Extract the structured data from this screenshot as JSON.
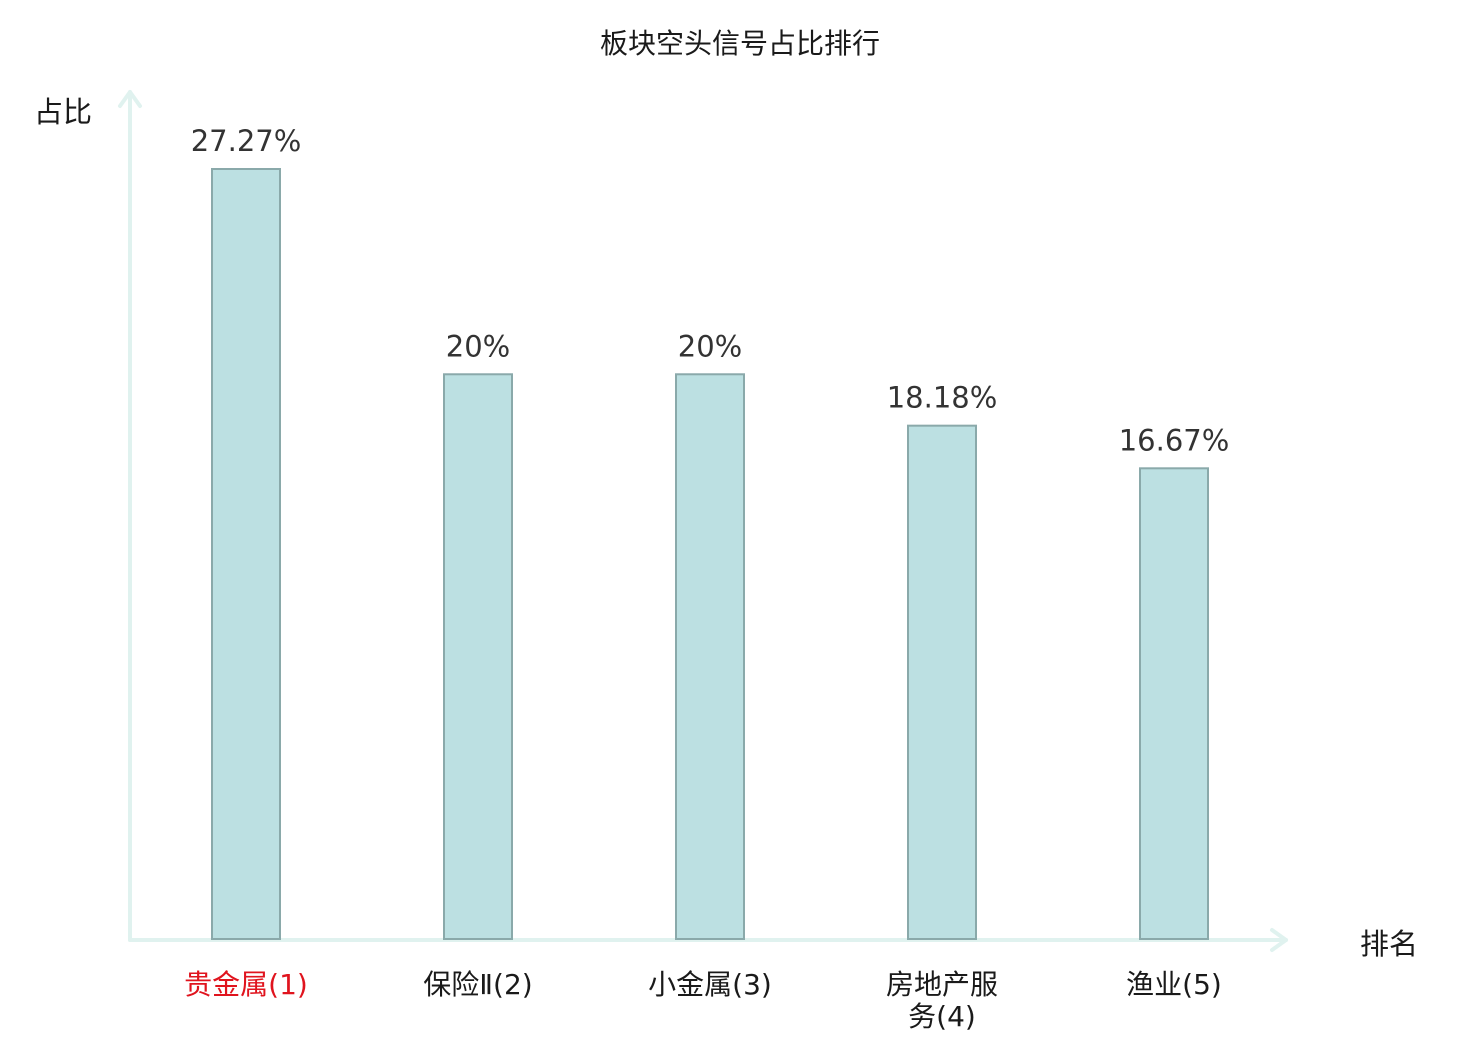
{
  "chart_data": {
    "type": "bar",
    "title": "板块空头信号占比排行",
    "xlabel": "排名",
    "ylabel": "占比",
    "categories": [
      [
        "贵金属(1)"
      ],
      [
        "保险Ⅱ(2)"
      ],
      [
        "小金属(3)"
      ],
      [
        "房地产服",
        "务(4)"
      ],
      [
        "渔业(5)"
      ]
    ],
    "values": [
      27.27,
      20,
      20,
      18.18,
      16.67
    ],
    "value_labels": [
      "27.27%",
      "20%",
      "20%",
      "18.18%",
      "16.67%"
    ],
    "highlight_index": 0,
    "ylim": [
      0,
      27.27
    ],
    "grid": false,
    "legend": "none"
  },
  "colors": {
    "bar_fill": "#bce0e2",
    "bar_stroke": "#8aa9aa",
    "axis": "#e0f2ef",
    "highlight_label": "#e0141e",
    "text": "#1a1a1a"
  }
}
